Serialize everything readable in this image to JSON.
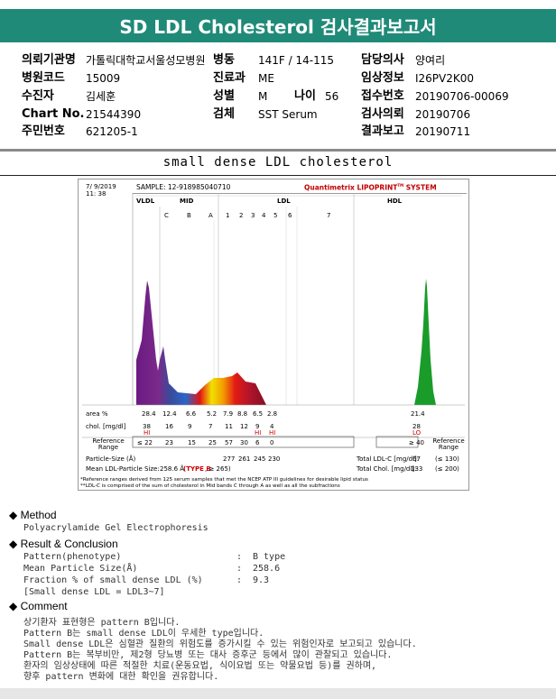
{
  "title": "SD LDL Cholesterol 검사결과보고서",
  "info": {
    "institution_label": "의뢰기관명",
    "institution": "가톨릭대학교서울성모병원",
    "ward_label": "병동",
    "ward": "141F / 14-115",
    "doctor_label": "담당의사",
    "doctor": "양여리",
    "hospital_code_label": "병원코드",
    "hospital_code": "15009",
    "dept_label": "진료과",
    "dept": "ME",
    "clinical_label": "임상정보",
    "clinical": "I26PV2K00",
    "patient_label": "수진자",
    "patient": "김세훈",
    "sex_label": "성별",
    "sex": "M",
    "age_label": "나이",
    "age": "56",
    "reception_label": "접수번호",
    "reception": "20190706-00069",
    "chart_label": "Chart No.",
    "chart": "21544390",
    "specimen_label": "검체",
    "specimen": "SST Serum",
    "request_label": "검사의뢰",
    "request": "20190706",
    "resident_label": "주민번호",
    "resident": "621205-1",
    "result_label": "결과보고",
    "result": "20190711"
  },
  "subtitle": "small dense LDL cholesterol",
  "lipoprint": {
    "date": "7/ 9/2019",
    "time": "11: 38",
    "sample": "SAMPLE: 12-918985040710",
    "brand": "Quantimetrix LIPOPRINT",
    "brand_tm": "TM",
    "brand_sys": "SYSTEM",
    "vldl": "VLDL",
    "mid": "MID",
    "ldl": "LDL",
    "hdl": "HDL",
    "mid_bands": [
      "C",
      "B",
      "A"
    ],
    "ldl_bands": [
      "1",
      "2",
      "3",
      "4",
      "5",
      "6",
      "7"
    ],
    "area_label": "area %",
    "area_values": [
      "28.4",
      "12.4",
      "6.6",
      "5.2",
      "7.9",
      "8.8",
      "6.5",
      "2.8"
    ],
    "hdl_area": "21.4",
    "chol_label": "chol. [mg/dl]",
    "chol_values": [
      "38",
      "16",
      "9",
      "7",
      "11",
      "12",
      "9",
      "4"
    ],
    "chol_flags": [
      "HI",
      "",
      "",
      "",
      "",
      "",
      "HI",
      "HI"
    ],
    "hdl_chol": "28",
    "hdl_flag": "LO",
    "ref_label": "Reference Range",
    "ref_values": [
      "≤ 22",
      "23",
      "15",
      "25",
      "57",
      "30",
      "6",
      "0"
    ],
    "hdl_ref": "≥ 40",
    "particle_label": "Particle-Size (Å)",
    "particle_values": [
      "277",
      "261",
      "245",
      "230"
    ],
    "mean_label": "Mean LDL-Particle Size:",
    "mean_value": "258.6 Å",
    "mean_type": "(TYPE B",
    "mean_limit": ", ≥ 265)",
    "total_ldl_label": "Total LDL-C [mg/dl]:",
    "total_ldl": "67",
    "total_ldl_ref": "(≤ 130)",
    "total_chol_label": "Total Chol. [mg/dl]:",
    "total_chol": "133",
    "total_chol_ref": "(≤ 200)",
    "footnote1": "*Reference ranges derived from 125 serum samples that met the NCEP ATP III guidelines for desirable lipid status",
    "footnote2": "**LDL-C is comprised of the sum of cholesterol in Mid bands C through A as well as all the subfractions"
  },
  "method": {
    "heading": "Method",
    "text": "Polyacrylamide Gel Electrophoresis"
  },
  "result": {
    "heading": "Result & Conclusion",
    "rows": [
      {
        "label": "Pattern(phenotype)",
        "value": "B type"
      },
      {
        "label": "Mean Particle Size(Å)",
        "value": "258.6"
      },
      {
        "label": "Fraction % of small dense LDL (%)",
        "value": "9.3"
      }
    ],
    "note": "[Small dense LDL = LDL3~7]"
  },
  "comment": {
    "heading": "Comment",
    "lines": [
      "상기환자 표현형은 pattern B입니다.",
      "Pattern B는 small dense LDL이 우세한 type입니다.",
      "Small dense LDL은 심혈관 질환의 위험도를 증가시킬 수 있는 위험인자로 보고되고 있습니다.",
      "Pattern B는 복부비만, 제2형 당뇨병 또는 대사 증후군 등에서 많이 관찰되고 있습니다.",
      "환자의 임상상태에 따른 적절한 치료(운동요법, 식이요법 또는 약물요법 등)를 권하며,",
      "향후 pattern 변화에 대한 확인을 권유합니다."
    ]
  }
}
